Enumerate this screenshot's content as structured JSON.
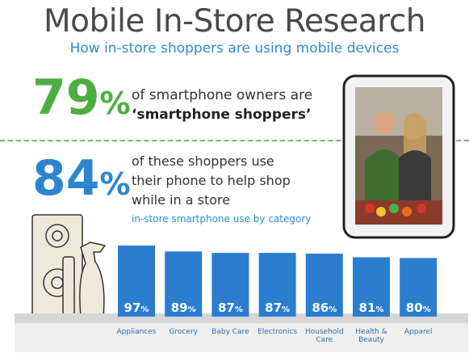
{
  "title": "Mobile In-Store Research",
  "subtitle": "How in-store shoppers are using mobile devices",
  "stat1": {
    "value": "79",
    "unit": "%",
    "line1": "of smartphone owners are",
    "line2": "‘smartphone shoppers’"
  },
  "stat2": {
    "value": "84",
    "unit": "%",
    "line1": "of these shoppers use",
    "line2": "their phone to help shop",
    "line3": "while in a store"
  },
  "category_note": "in-store smartphone use by category",
  "colors": {
    "green": "#4cae3f",
    "blue": "#2c86cf",
    "bar": "#2b7dd0"
  },
  "chart_data": {
    "type": "bar",
    "categories": [
      "Appliances",
      "Grocery",
      "Baby Care",
      "Electronics",
      "Household Care",
      "Health & Beauty",
      "Apparel"
    ],
    "category_lines": [
      [
        "Appliances"
      ],
      [
        "Grocery"
      ],
      [
        "Baby Care"
      ],
      [
        "Electronics"
      ],
      [
        "Household",
        "Care"
      ],
      [
        "Health &",
        "Beauty"
      ],
      [
        "Apparel"
      ]
    ],
    "values": [
      97,
      89,
      87,
      87,
      86,
      81,
      80
    ],
    "value_unit": "%",
    "ylim": [
      0,
      100
    ]
  }
}
